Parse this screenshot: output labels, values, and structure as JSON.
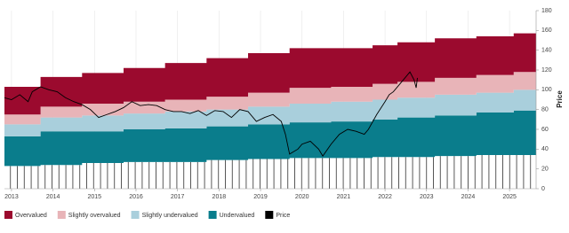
{
  "chart_data": {
    "type": "stacked-step-area",
    "x": [
      2012.83,
      2013.7,
      2014.7,
      2015.7,
      2016.7,
      2017.7,
      2018.7,
      2019.7,
      2020.7,
      2021.7,
      2022.3,
      2023.2,
      2024.2,
      2025.1
    ],
    "series": [
      {
        "color": "#ffffff",
        "hatch": true,
        "values": [
          23,
          24,
          26,
          27,
          27,
          29,
          30,
          31,
          31,
          32,
          32,
          33,
          34,
          34
        ]
      },
      {
        "name": "Undervalued",
        "color": "#0a7d8c",
        "values": [
          30,
          34,
          32,
          33,
          34,
          34,
          35,
          36,
          37,
          38,
          40,
          41,
          43,
          45
        ]
      },
      {
        "name": "Slightly undervalued",
        "color": "#a9cfdc",
        "values": [
          12,
          14,
          16,
          16,
          17,
          17,
          18,
          19,
          20,
          20,
          20,
          21,
          20,
          21
        ]
      },
      {
        "name": "Slightly overvalued",
        "color": "#e8b4b8",
        "values": [
          10,
          11,
          12,
          12,
          12,
          13,
          14,
          16,
          15,
          16,
          16,
          17,
          18,
          18
        ]
      },
      {
        "name": "Overvalued",
        "color": "#9b0a2e",
        "values": [
          28,
          30,
          31,
          34,
          37,
          39,
          40,
          40,
          39,
          39,
          40,
          40,
          39,
          39
        ]
      }
    ],
    "price": {
      "name": "Price",
      "color": "#000000",
      "x": [
        2012.83,
        2013.0,
        2013.2,
        2013.4,
        2013.5,
        2013.7,
        2013.9,
        2014.1,
        2014.3,
        2014.5,
        2014.7,
        2014.9,
        2015.1,
        2015.3,
        2015.5,
        2015.7,
        2015.9,
        2016.1,
        2016.3,
        2016.5,
        2016.7,
        2016.9,
        2017.1,
        2017.3,
        2017.5,
        2017.7,
        2017.9,
        2018.1,
        2018.3,
        2018.5,
        2018.7,
        2018.9,
        2019.1,
        2019.3,
        2019.5,
        2019.6,
        2019.7,
        2019.9,
        2020.0,
        2020.2,
        2020.4,
        2020.5,
        2020.7,
        2020.9,
        2021.1,
        2021.3,
        2021.5,
        2021.6,
        2021.8,
        2022.0,
        2022.1,
        2022.2,
        2022.4,
        2022.6,
        2022.7,
        2022.75,
        2022.78
      ],
      "values": [
        92,
        90,
        95,
        88,
        98,
        103,
        100,
        98,
        92,
        88,
        85,
        80,
        72,
        75,
        78,
        82,
        88,
        84,
        85,
        84,
        80,
        78,
        78,
        76,
        79,
        74,
        79,
        78,
        72,
        80,
        78,
        68,
        72,
        75,
        68,
        55,
        35,
        40,
        45,
        48,
        40,
        33,
        45,
        55,
        60,
        58,
        55,
        60,
        75,
        88,
        95,
        98,
        108,
        118,
        110,
        102,
        112
      ]
    },
    "xlim": [
      2012.83,
      2025.64
    ],
    "xticks": [
      2013,
      2014,
      2015,
      2016,
      2017,
      2018,
      2019,
      2020,
      2021,
      2022,
      2023,
      2024,
      2025
    ],
    "ylim": [
      0,
      180
    ],
    "yticks": [
      0,
      20,
      40,
      60,
      80,
      100,
      120,
      140,
      160,
      180
    ],
    "ylabel": "Price",
    "xgrid": true,
    "legend": "bottom-left"
  }
}
